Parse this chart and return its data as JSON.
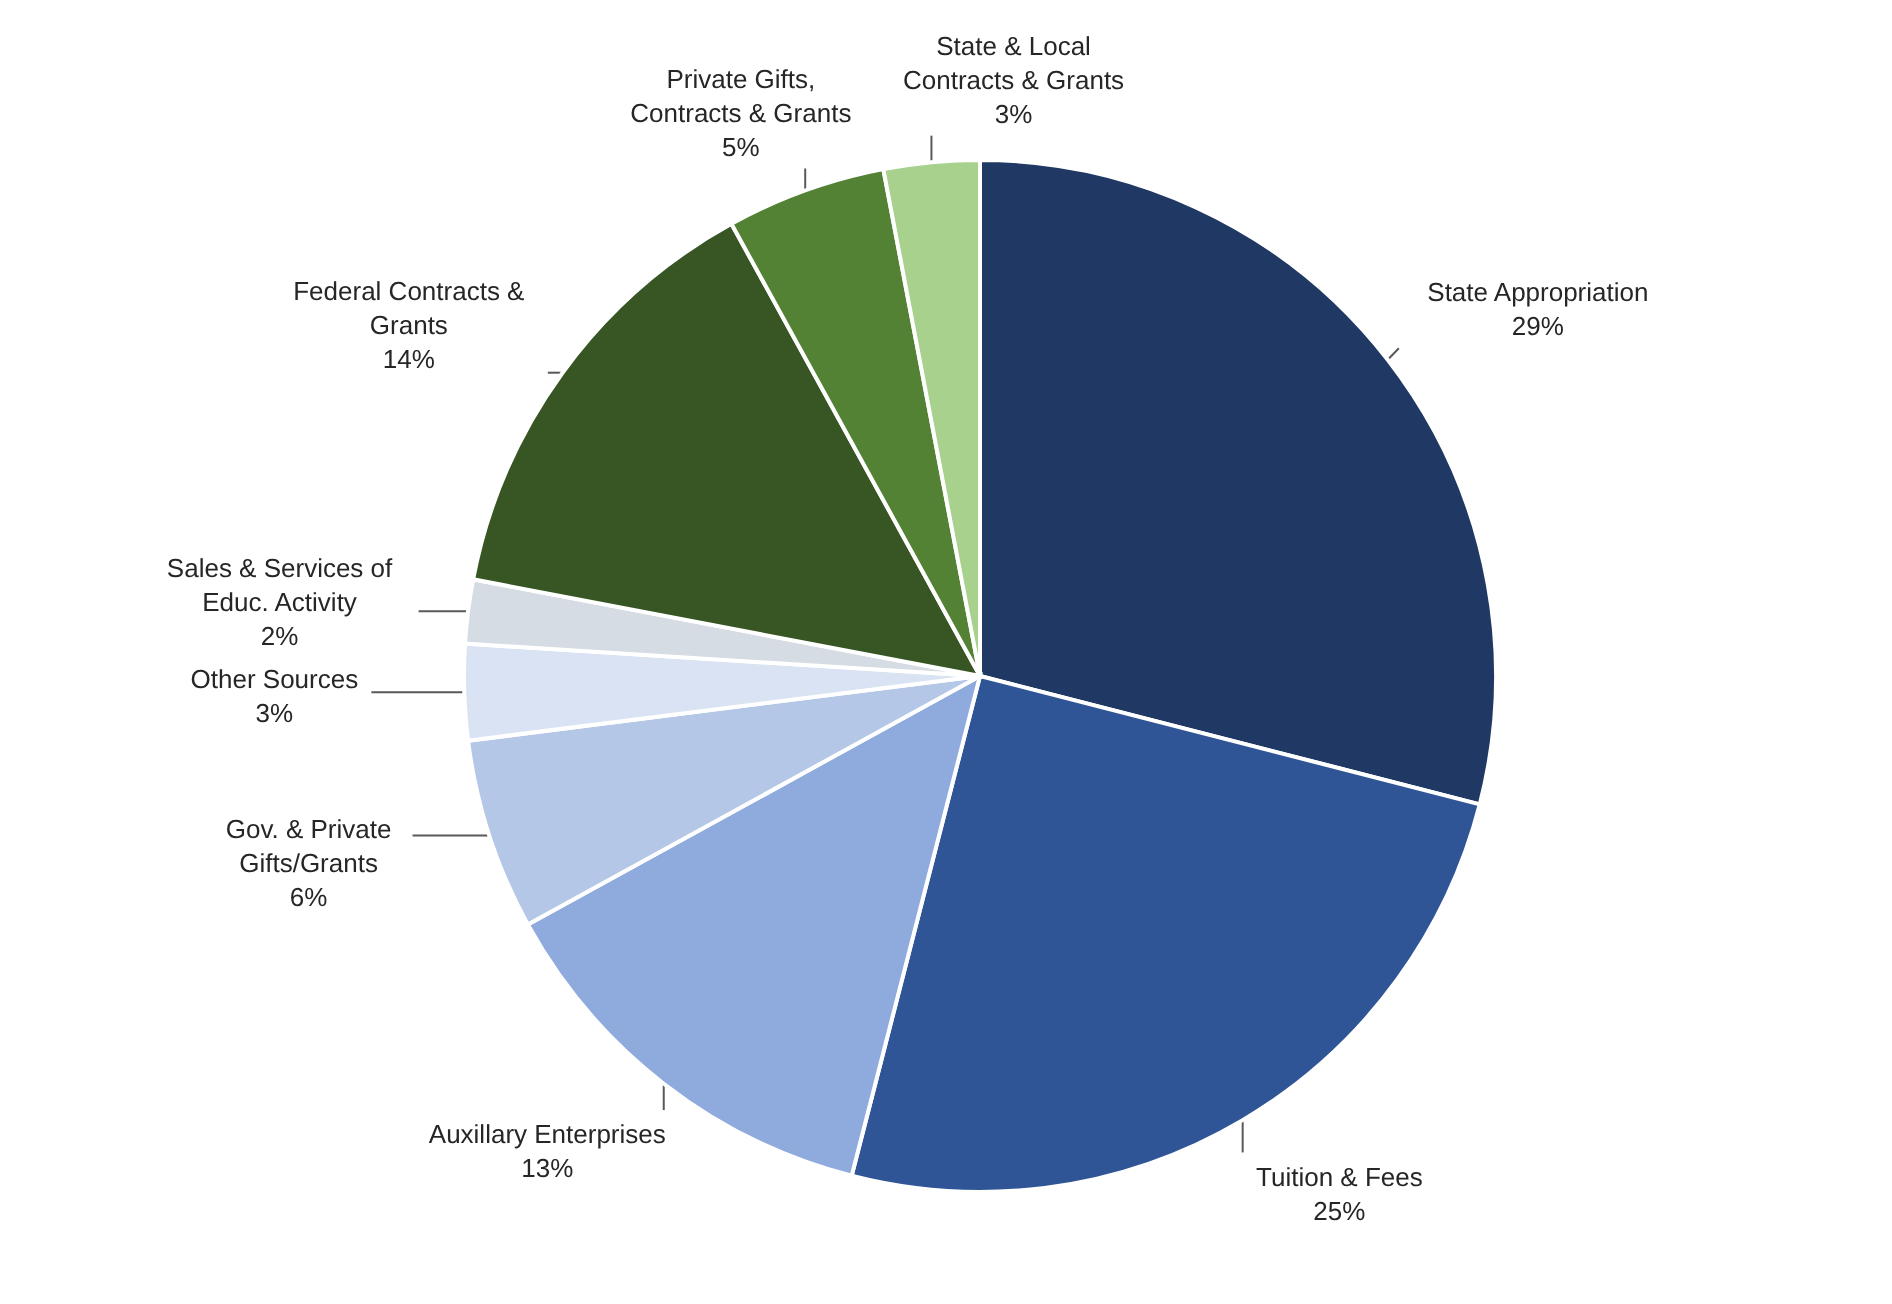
{
  "chart_data": {
    "type": "pie",
    "categories": [
      "State Appropriation",
      "Tuition & Fees",
      "Auxillary Enterprises",
      "Gov. & Private Gifts/Grants",
      "Other Sources",
      "Sales & Services of Educ. Activity",
      "Federal Contracts & Grants",
      "Private Gifts, Contracts & Grants",
      "State & Local Contracts & Grants"
    ],
    "values": [
      29,
      25,
      13,
      6,
      3,
      2,
      14,
      5,
      3
    ],
    "value_labels": [
      "29%",
      "25%",
      "13%",
      "6%",
      "3%",
      "2%",
      "14%",
      "5%",
      "3%"
    ],
    "colors": [
      "#1f3864",
      "#2f5597",
      "#8faadc",
      "#b4c7e7",
      "#dae3f3",
      "#d6dce4",
      "#375623",
      "#548235",
      "#a9d18e"
    ]
  }
}
